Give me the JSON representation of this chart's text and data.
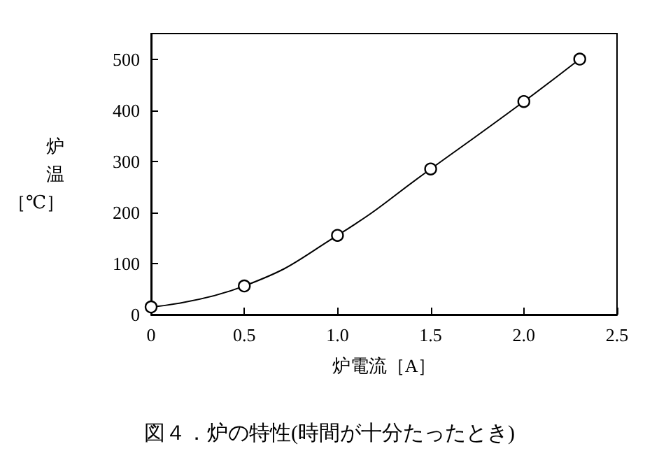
{
  "chart_data": {
    "type": "line",
    "title": "図４．炉の特性(時間が十分たったとき)",
    "xlabel": "炉電流［A］",
    "ylabel": "炉温［℃］",
    "x": [
      0,
      0.5,
      1.0,
      1.5,
      2.0,
      2.3
    ],
    "series": [
      {
        "color": "#000000",
        "values": [
          15,
          56,
          155,
          285,
          417,
          500
        ]
      }
    ],
    "xlim": [
      0,
      2.5
    ],
    "xticks": [
      0,
      0.5,
      {
        "value": 1,
        "label": "1.0"
      },
      1.5,
      {
        "value": 2,
        "label": "2.0"
      },
      2.5
    ],
    "ylim": [
      0,
      550
    ],
    "yticks": [
      0,
      100,
      200,
      300,
      400,
      500
    ],
    "grid": false,
    "marker": "circle",
    "line_style": "solid"
  }
}
